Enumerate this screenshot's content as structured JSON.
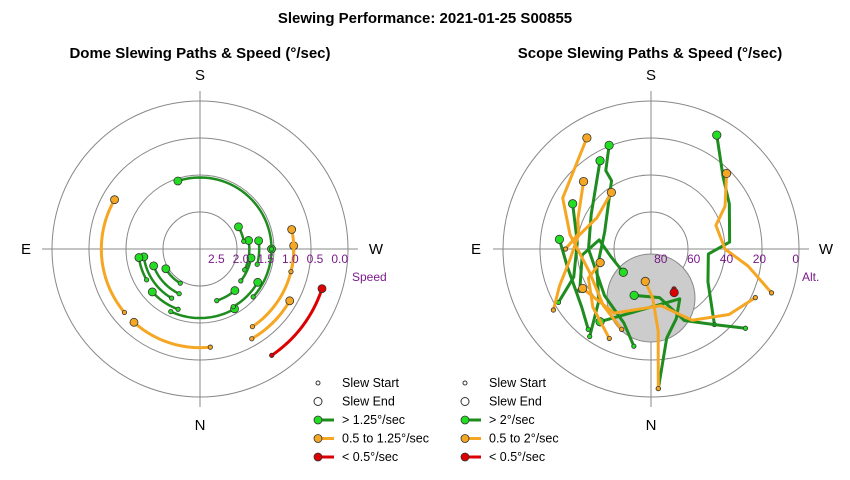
{
  "title": "Slewing Performance: 2021-01-25 S00855",
  "colors": {
    "fast": "#1e8c1e",
    "fast_fill": "#22dd22",
    "medium": "#f5a623",
    "medium_fill": "#f5a623",
    "slow": "#dd0000",
    "slow_fill": "#dd0000",
    "grid": "#888888",
    "label": "#7a1a8a",
    "zenith_disk": "#cccccc"
  },
  "chart_data": [
    {
      "type": "polar",
      "id": "dome",
      "title": "Dome Slewing Paths & Speed (°/sec)",
      "cardinals": {
        "top": "S",
        "bottom": "N",
        "left": "E",
        "right": "W"
      },
      "radial_axis_name": "Speed",
      "radial_ticks": [
        "2.5",
        "2.0",
        "1.5",
        "1.0",
        "0.5",
        "0.0"
      ],
      "radial_range": [
        3.0,
        0.0
      ],
      "legend": [
        {
          "marker": "start",
          "label": "Slew Start"
        },
        {
          "marker": "end",
          "label": "Slew End"
        },
        {
          "marker": "line",
          "speed_class": "fast",
          "label": "> 1.25°/sec"
        },
        {
          "marker": "line",
          "speed_class": "medium",
          "label": "0.5 to 1.25°/sec"
        },
        {
          "marker": "line",
          "speed_class": "slow",
          "label": "< 0.5°/sec"
        }
      ],
      "paths": [
        {
          "speed_class": "slow",
          "speed": 0.4,
          "az_start": 146,
          "az_end": 108
        },
        {
          "speed_class": "medium",
          "speed": 1.1,
          "az_start": 146,
          "az_end": 88
        },
        {
          "speed_class": "medium",
          "speed": 1.1,
          "az_start": 104,
          "az_end": 78
        },
        {
          "speed_class": "medium",
          "speed": 0.9,
          "az_start": 150,
          "az_end": 120
        },
        {
          "speed_class": "medium",
          "speed": 1.0,
          "az_start": 174,
          "az_end": 222
        },
        {
          "speed_class": "medium",
          "speed": 1.0,
          "az_start": 230,
          "az_end": 300
        },
        {
          "speed_class": "fast",
          "speed": 1.55,
          "az_start": 132,
          "az_end": 90
        },
        {
          "speed_class": "fast",
          "speed": 1.55,
          "az_start": 90,
          "az_end": -18
        },
        {
          "speed_class": "fast",
          "speed": 1.8,
          "az_start": 105,
          "az_end": 82
        },
        {
          "speed_class": "fast",
          "speed": 2.0,
          "az_start": 115,
          "az_end": 80
        },
        {
          "speed_class": "fast",
          "speed": 1.9,
          "az_start": 162,
          "az_end": 140
        },
        {
          "speed_class": "fast",
          "speed": 2.0,
          "az_start": 205,
          "az_end": 250
        },
        {
          "speed_class": "fast",
          "speed": 1.85,
          "az_start": 210,
          "az_end": 262
        },
        {
          "speed_class": "fast",
          "speed": 1.75,
          "az_start": 240,
          "az_end": 262
        },
        {
          "speed_class": "fast",
          "speed": 1.7,
          "az_start": 200,
          "az_end": 228
        },
        {
          "speed_class": "fast",
          "speed": 1.6,
          "az_start": 205,
          "az_end": 150
        },
        {
          "speed_class": "fast",
          "speed": 1.65,
          "az_start": 150,
          "az_end": 120
        },
        {
          "speed_class": "fast",
          "speed": 1.95,
          "az_start": 128,
          "az_end": 100
        },
        {
          "speed_class": "fast",
          "speed": 2.1,
          "az_start": 80,
          "az_end": 60
        },
        {
          "speed_class": "fast",
          "speed": 2.2,
          "az_start": 210,
          "az_end": 240
        }
      ]
    },
    {
      "type": "polar",
      "id": "scope",
      "title": "Scope Slewing Paths & Speed (°/sec)",
      "cardinals": {
        "top": "S",
        "bottom": "N",
        "left": "E",
        "right": "W"
      },
      "radial_axis_name": "Alt.",
      "radial_ticks": [
        "80",
        "60",
        "40",
        "20",
        "0"
      ],
      "radial_range": [
        90,
        0
      ],
      "legend": [
        {
          "marker": "start",
          "label": "Slew Start"
        },
        {
          "marker": "end",
          "label": "Slew End"
        },
        {
          "marker": "line",
          "speed_class": "fast",
          "label": "> 2°/sec"
        },
        {
          "marker": "line",
          "speed_class": "medium",
          "label": "0.5 to 2°/sec"
        },
        {
          "marker": "line",
          "speed_class": "slow",
          "label": "< 0.5°/sec"
        }
      ],
      "paths": [
        {
          "speed_class": "fast",
          "points": [
            [
              177,
              5
            ],
            [
              170,
              35
            ],
            [
              160,
              45
            ],
            [
              150,
              55
            ],
            [
              205,
              45
            ],
            [
              215,
              36
            ]
          ]
        },
        {
          "speed_class": "fast",
          "points": [
            [
              215,
              25
            ],
            [
              225,
              45
            ],
            [
              250,
              55
            ],
            [
              290,
              60
            ],
            [
              330,
              42
            ],
            [
              330,
              35
            ],
            [
              338,
              22
            ]
          ]
        },
        {
          "speed_class": "fast",
          "points": [
            [
              140,
              30
            ],
            [
              120,
              50
            ],
            [
              95,
              55
            ],
            [
              85,
              42
            ],
            [
              60,
              35
            ],
            [
              45,
              28
            ],
            [
              30,
              10
            ]
          ]
        },
        {
          "speed_class": "fast",
          "points": [
            [
              240,
              40
            ],
            [
              265,
              48
            ],
            [
              280,
              58
            ],
            [
              260,
              65
            ],
            [
              230,
              68
            ]
          ]
        },
        {
          "speed_class": "fast",
          "points": [
            [
              190,
              30
            ],
            [
              200,
              42
            ],
            [
              225,
              50
            ],
            [
              270,
              52
            ],
            [
              300,
              48
            ],
            [
              330,
              28
            ]
          ]
        },
        {
          "speed_class": "fast",
          "points": [
            [
              130,
              15
            ],
            [
              140,
              30
            ],
            [
              155,
              42
            ],
            [
              170,
              60
            ],
            [
              200,
              60
            ]
          ]
        },
        {
          "speed_class": "fast",
          "points": [
            [
              240,
              25
            ],
            [
              250,
              40
            ],
            [
              275,
              45
            ],
            [
              300,
              35
            ]
          ]
        },
        {
          "speed_class": "fast",
          "points": [
            [
              218,
              28
            ],
            [
              230,
              35
            ],
            [
              258,
              38
            ],
            [
              276,
              34
            ]
          ]
        },
        {
          "speed_class": "medium",
          "points": [
            [
              177,
              5
            ],
            [
              175,
              40
            ],
            [
              178,
              60
            ],
            [
              190,
              70
            ]
          ]
        },
        {
          "speed_class": "medium",
          "points": [
            [
              238,
              20
            ],
            [
              248,
              30
            ],
            [
              262,
              40
            ],
            [
              280,
              45
            ],
            [
              300,
              52
            ],
            [
              325,
              48
            ]
          ]
        },
        {
          "speed_class": "medium",
          "points": [
            [
              200,
              38
            ],
            [
              220,
              45
            ],
            [
              250,
              50
            ],
            [
              280,
              40
            ],
            [
              300,
              28
            ],
            [
              330,
              12
            ]
          ]
        },
        {
          "speed_class": "medium",
          "points": [
            [
              110,
              12
            ],
            [
              100,
              30
            ],
            [
              90,
              45
            ],
            [
              70,
              48
            ],
            [
              60,
              38
            ],
            [
              45,
              25
            ]
          ]
        },
        {
          "speed_class": "medium",
          "points": [
            [
              115,
              20
            ],
            [
              130,
              28
            ],
            [
              150,
              40
            ],
            [
              170,
              55
            ],
            [
              210,
              45
            ],
            [
              240,
              42
            ]
          ]
        },
        {
          "speed_class": "medium",
          "points": [
            [
              270,
              38
            ],
            [
              282,
              45
            ],
            [
              292,
              42
            ],
            [
              315,
              32
            ]
          ]
        },
        {
          "speed_class": "medium",
          "points": [
            [
              205,
              30
            ],
            [
              225,
              40
            ],
            [
              245,
              48
            ],
            [
              255,
              58
            ]
          ]
        },
        {
          "speed_class": "slow",
          "points": [
            [
              150,
              62
            ],
            [
              152,
              60
            ]
          ]
        }
      ],
      "obstruction": {
        "label": "",
        "alt_center": 60,
        "az_center": 0
      }
    }
  ]
}
